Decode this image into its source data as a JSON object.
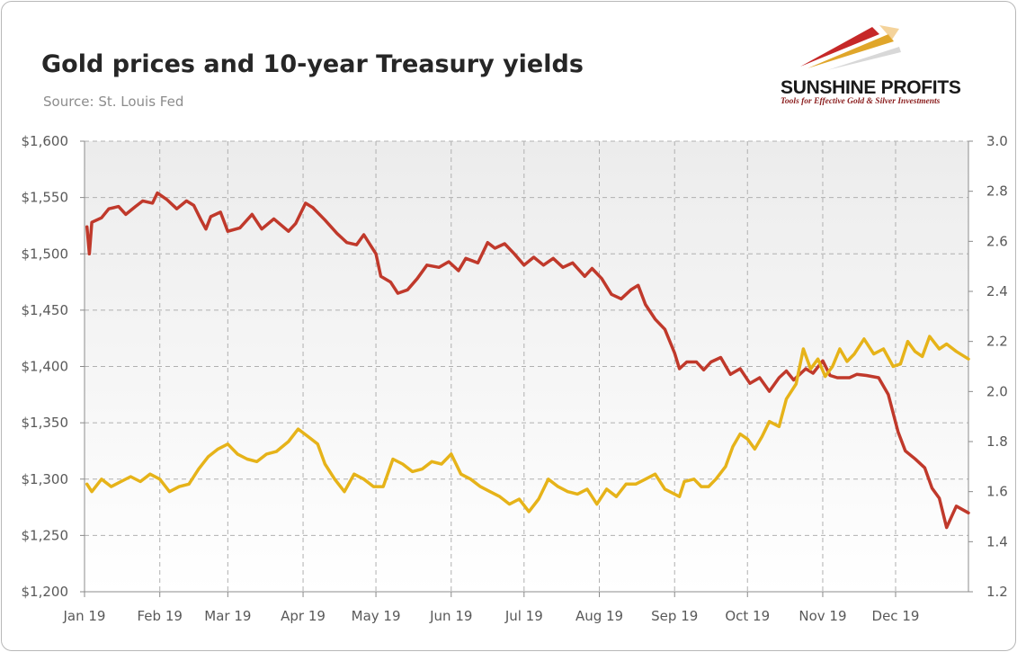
{
  "header": {
    "title": "Gold prices and 10-year Treasury yields",
    "subtitle": "Source: St. Louis Fed"
  },
  "logo": {
    "name": "SUNSHINE PROFITS",
    "tagline": "Tools for Effective Gold & Silver Investments"
  },
  "chart_data": {
    "type": "line",
    "title": "Gold prices and 10-year Treasury yields",
    "subtitle": "Source: St. Louis Fed",
    "x_ticks": [
      "Jan 19",
      "Feb 19",
      "Mar 19",
      "Apr 19",
      "May 19",
      "Jun 19",
      "Jul 19",
      "Aug 19",
      "Sep 19",
      "Oct 19",
      "Nov 19",
      "Dec 19"
    ],
    "y_left": {
      "ticks": [
        "$1,200",
        "$1,250",
        "$1,300",
        "$1,350",
        "$1,400",
        "$1,450",
        "$1,500",
        "$1,550",
        "$1,600"
      ],
      "min": 1200,
      "max": 1600
    },
    "y_right": {
      "ticks": [
        "1.2",
        "1.4",
        "1.6",
        "1.8",
        "2.0",
        "2.2",
        "2.4",
        "2.6",
        "2.8",
        "3.0"
      ],
      "min": 1.2,
      "max": 3.0
    },
    "x_range": [
      "2019-01-01",
      "2019-12-31"
    ],
    "grid": true,
    "legend": "none",
    "colors": {
      "gold": "#c0392b",
      "yield": "#e6b319"
    },
    "series": [
      {
        "axis": "left",
        "color": "#c0392b",
        "points": [
          [
            "2019-01-02",
            1524
          ],
          [
            "2019-01-03",
            1500
          ],
          [
            "2019-01-04",
            1528
          ],
          [
            "2019-01-08",
            1532
          ],
          [
            "2019-01-11",
            1540
          ],
          [
            "2019-01-15",
            1542
          ],
          [
            "2019-01-18",
            1535
          ],
          [
            "2019-01-22",
            1542
          ],
          [
            "2019-01-25",
            1547
          ],
          [
            "2019-01-29",
            1545
          ],
          [
            "2019-01-31",
            1554
          ],
          [
            "2019-02-04",
            1548
          ],
          [
            "2019-02-08",
            1540
          ],
          [
            "2019-02-12",
            1547
          ],
          [
            "2019-02-15",
            1543
          ],
          [
            "2019-02-18",
            1530
          ],
          [
            "2019-02-20",
            1522
          ],
          [
            "2019-02-22",
            1533
          ],
          [
            "2019-02-26",
            1537
          ],
          [
            "2019-03-01",
            1520
          ],
          [
            "2019-03-06",
            1523
          ],
          [
            "2019-03-11",
            1535
          ],
          [
            "2019-03-15",
            1522
          ],
          [
            "2019-03-20",
            1531
          ],
          [
            "2019-03-26",
            1520
          ],
          [
            "2019-03-29",
            1527
          ],
          [
            "2019-04-02",
            1545
          ],
          [
            "2019-04-05",
            1541
          ],
          [
            "2019-04-10",
            1530
          ],
          [
            "2019-04-15",
            1518
          ],
          [
            "2019-04-19",
            1510
          ],
          [
            "2019-04-23",
            1508
          ],
          [
            "2019-04-26",
            1517
          ],
          [
            "2019-05-01",
            1500
          ],
          [
            "2019-05-03",
            1480
          ],
          [
            "2019-05-07",
            1475
          ],
          [
            "2019-05-10",
            1465
          ],
          [
            "2019-05-14",
            1468
          ],
          [
            "2019-05-18",
            1478
          ],
          [
            "2019-05-22",
            1490
          ],
          [
            "2019-05-27",
            1488
          ],
          [
            "2019-05-31",
            1493
          ],
          [
            "2019-06-04",
            1485
          ],
          [
            "2019-06-07",
            1496
          ],
          [
            "2019-06-12",
            1492
          ],
          [
            "2019-06-16",
            1510
          ],
          [
            "2019-06-19",
            1505
          ],
          [
            "2019-06-23",
            1509
          ],
          [
            "2019-06-27",
            1500
          ],
          [
            "2019-07-01",
            1490
          ],
          [
            "2019-07-05",
            1497
          ],
          [
            "2019-07-09",
            1490
          ],
          [
            "2019-07-13",
            1496
          ],
          [
            "2019-07-17",
            1488
          ],
          [
            "2019-07-21",
            1492
          ],
          [
            "2019-07-26",
            1480
          ],
          [
            "2019-07-29",
            1487
          ],
          [
            "2019-08-02",
            1478
          ],
          [
            "2019-08-06",
            1464
          ],
          [
            "2019-08-10",
            1460
          ],
          [
            "2019-08-14",
            1468
          ],
          [
            "2019-08-17",
            1472
          ],
          [
            "2019-08-20",
            1455
          ],
          [
            "2019-08-24",
            1442
          ],
          [
            "2019-08-28",
            1433
          ],
          [
            "2019-09-01",
            1412
          ],
          [
            "2019-09-03",
            1398
          ],
          [
            "2019-09-06",
            1404
          ],
          [
            "2019-09-10",
            1404
          ],
          [
            "2019-09-13",
            1397
          ],
          [
            "2019-09-16",
            1404
          ],
          [
            "2019-09-20",
            1408
          ],
          [
            "2019-09-24",
            1393
          ],
          [
            "2019-09-28",
            1398
          ],
          [
            "2019-10-02",
            1385
          ],
          [
            "2019-10-06",
            1390
          ],
          [
            "2019-10-10",
            1378
          ],
          [
            "2019-10-14",
            1390
          ],
          [
            "2019-10-17",
            1396
          ],
          [
            "2019-10-20",
            1388
          ],
          [
            "2019-10-25",
            1398
          ],
          [
            "2019-10-28",
            1394
          ],
          [
            "2019-11-01",
            1405
          ],
          [
            "2019-11-04",
            1392
          ],
          [
            "2019-11-07",
            1390
          ],
          [
            "2019-11-12",
            1390
          ],
          [
            "2019-11-15",
            1393
          ],
          [
            "2019-11-19",
            1392
          ],
          [
            "2019-11-24",
            1390
          ],
          [
            "2019-11-28",
            1375
          ],
          [
            "2019-12-02",
            1342
          ],
          [
            "2019-12-05",
            1325
          ],
          [
            "2019-12-09",
            1318
          ],
          [
            "2019-12-13",
            1310
          ],
          [
            "2019-12-16",
            1292
          ],
          [
            "2019-12-19",
            1283
          ],
          [
            "2019-12-22",
            1257
          ],
          [
            "2019-12-26",
            1276
          ],
          [
            "2019-12-31",
            1270
          ]
        ]
      },
      {
        "axis": "right",
        "color": "#e6b319",
        "points": [
          [
            "2019-01-02",
            1.63
          ],
          [
            "2019-01-04",
            1.6
          ],
          [
            "2019-01-08",
            1.65
          ],
          [
            "2019-01-12",
            1.62
          ],
          [
            "2019-01-16",
            1.64
          ],
          [
            "2019-01-20",
            1.66
          ],
          [
            "2019-01-24",
            1.64
          ],
          [
            "2019-01-28",
            1.67
          ],
          [
            "2019-02-01",
            1.65
          ],
          [
            "2019-02-05",
            1.6
          ],
          [
            "2019-02-09",
            1.62
          ],
          [
            "2019-02-13",
            1.63
          ],
          [
            "2019-02-17",
            1.69
          ],
          [
            "2019-02-21",
            1.74
          ],
          [
            "2019-02-25",
            1.77
          ],
          [
            "2019-03-01",
            1.79
          ],
          [
            "2019-03-05",
            1.75
          ],
          [
            "2019-03-09",
            1.73
          ],
          [
            "2019-03-13",
            1.72
          ],
          [
            "2019-03-17",
            1.75
          ],
          [
            "2019-03-21",
            1.76
          ],
          [
            "2019-03-26",
            1.8
          ],
          [
            "2019-03-30",
            1.85
          ],
          [
            "2019-04-03",
            1.82
          ],
          [
            "2019-04-07",
            1.79
          ],
          [
            "2019-04-10",
            1.71
          ],
          [
            "2019-04-14",
            1.65
          ],
          [
            "2019-04-18",
            1.6
          ],
          [
            "2019-04-22",
            1.67
          ],
          [
            "2019-04-26",
            1.65
          ],
          [
            "2019-04-30",
            1.62
          ],
          [
            "2019-05-04",
            1.62
          ],
          [
            "2019-05-08",
            1.73
          ],
          [
            "2019-05-12",
            1.71
          ],
          [
            "2019-05-16",
            1.68
          ],
          [
            "2019-05-20",
            1.69
          ],
          [
            "2019-05-24",
            1.72
          ],
          [
            "2019-05-28",
            1.71
          ],
          [
            "2019-06-01",
            1.75
          ],
          [
            "2019-06-05",
            1.67
          ],
          [
            "2019-06-09",
            1.65
          ],
          [
            "2019-06-13",
            1.62
          ],
          [
            "2019-06-17",
            1.6
          ],
          [
            "2019-06-21",
            1.58
          ],
          [
            "2019-06-25",
            1.55
          ],
          [
            "2019-06-29",
            1.57
          ],
          [
            "2019-07-03",
            1.52
          ],
          [
            "2019-07-07",
            1.57
          ],
          [
            "2019-07-11",
            1.65
          ],
          [
            "2019-07-15",
            1.62
          ],
          [
            "2019-07-19",
            1.6
          ],
          [
            "2019-07-23",
            1.59
          ],
          [
            "2019-07-27",
            1.61
          ],
          [
            "2019-07-31",
            1.55
          ],
          [
            "2019-08-04",
            1.61
          ],
          [
            "2019-08-08",
            1.58
          ],
          [
            "2019-08-12",
            1.63
          ],
          [
            "2019-08-16",
            1.63
          ],
          [
            "2019-08-20",
            1.65
          ],
          [
            "2019-08-24",
            1.67
          ],
          [
            "2019-08-28",
            1.61
          ],
          [
            "2019-09-01",
            1.59
          ],
          [
            "2019-09-03",
            1.58
          ],
          [
            "2019-09-05",
            1.64
          ],
          [
            "2019-09-09",
            1.65
          ],
          [
            "2019-09-12",
            1.62
          ],
          [
            "2019-09-15",
            1.62
          ],
          [
            "2019-09-18",
            1.65
          ],
          [
            "2019-09-22",
            1.7
          ],
          [
            "2019-09-25",
            1.78
          ],
          [
            "2019-09-28",
            1.83
          ],
          [
            "2019-10-01",
            1.81
          ],
          [
            "2019-10-04",
            1.77
          ],
          [
            "2019-10-07",
            1.82
          ],
          [
            "2019-10-10",
            1.88
          ],
          [
            "2019-10-14",
            1.86
          ],
          [
            "2019-10-17",
            1.97
          ],
          [
            "2019-10-21",
            2.03
          ],
          [
            "2019-10-24",
            2.17
          ],
          [
            "2019-10-27",
            2.09
          ],
          [
            "2019-10-30",
            2.13
          ],
          [
            "2019-11-02",
            2.06
          ],
          [
            "2019-11-05",
            2.1
          ],
          [
            "2019-11-08",
            2.17
          ],
          [
            "2019-11-11",
            2.12
          ],
          [
            "2019-11-14",
            2.15
          ],
          [
            "2019-11-18",
            2.21
          ],
          [
            "2019-11-22",
            2.15
          ],
          [
            "2019-11-26",
            2.17
          ],
          [
            "2019-11-30",
            2.1
          ],
          [
            "2019-12-03",
            2.11
          ],
          [
            "2019-12-06",
            2.2
          ],
          [
            "2019-12-09",
            2.16
          ],
          [
            "2019-12-12",
            2.14
          ],
          [
            "2019-12-15",
            2.22
          ],
          [
            "2019-12-19",
            2.17
          ],
          [
            "2019-12-22",
            2.19
          ],
          [
            "2019-12-26",
            2.16
          ],
          [
            "2019-12-31",
            2.13
          ]
        ]
      }
    ]
  }
}
